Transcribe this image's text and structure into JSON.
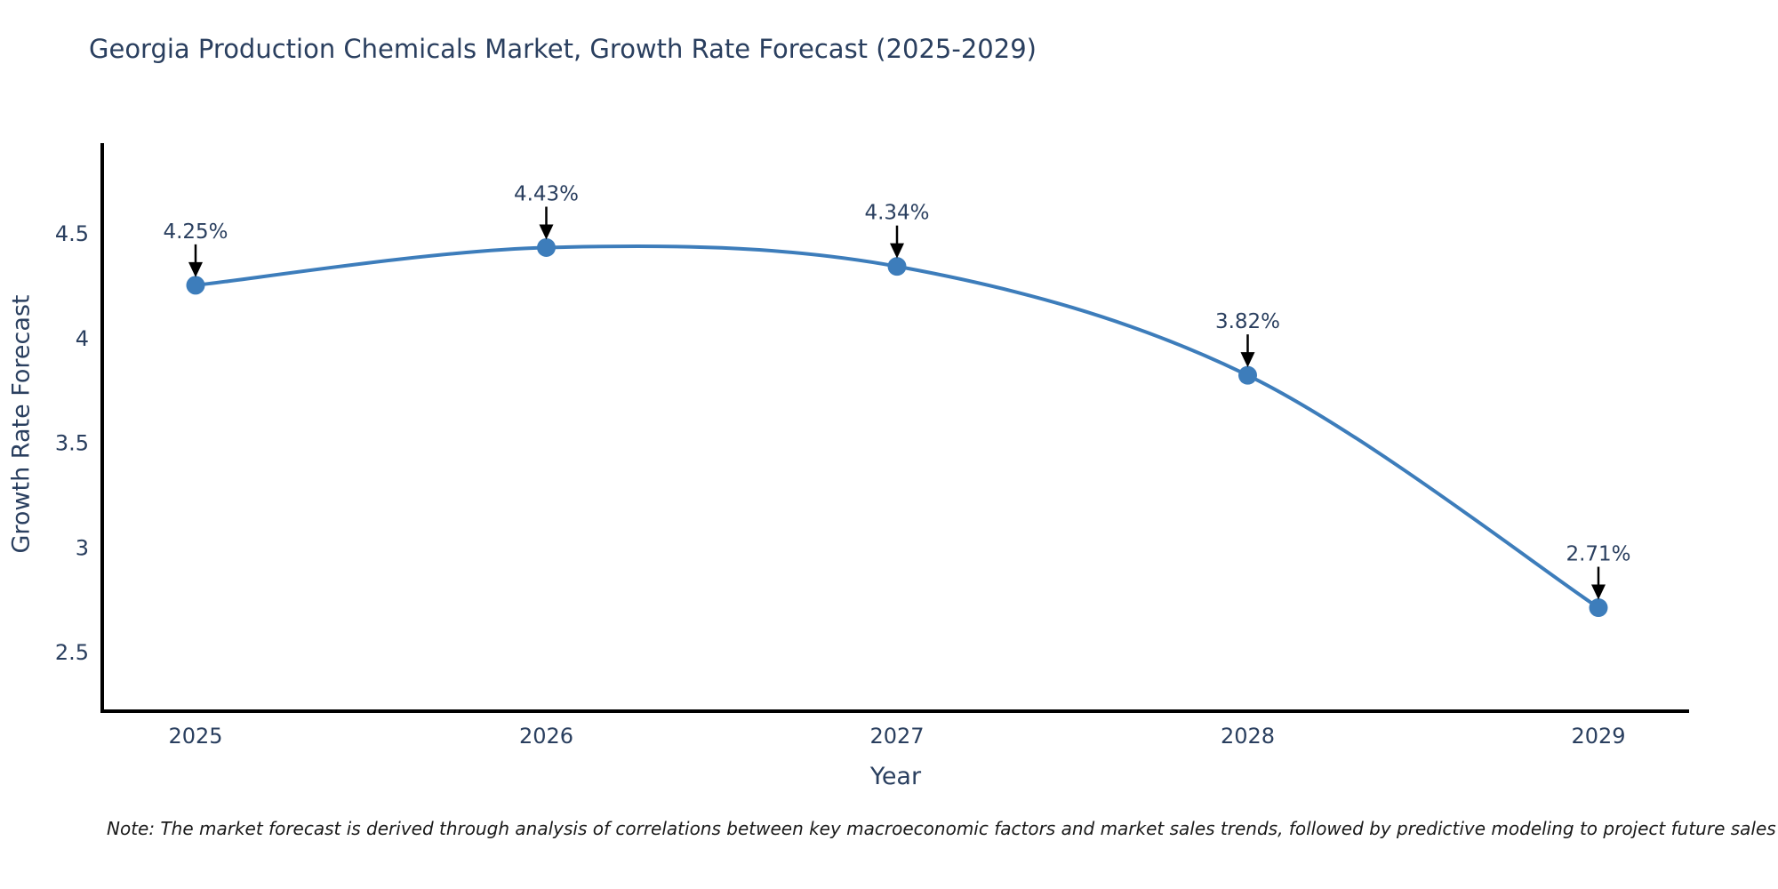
{
  "chart": {
    "note": "Note: The market forecast is derived through analysis of correlations between key macroeconomic factors and market sales trends, followed by predictive modeling to project future sales",
    "colors": {
      "line": "#3d7dbb",
      "marker": "#3d7dbb",
      "axis": "#000000",
      "text": "#2a3f5f",
      "arrow": "#000000",
      "note": "#1a1a1a",
      "background": "#ffffff"
    }
  },
  "chart_data": {
    "type": "line",
    "title": "Georgia Production Chemicals Market, Growth Rate Forecast (2025-2029)",
    "xlabel": "Year",
    "ylabel": "Growth Rate Forecast",
    "x": [
      2025,
      2026,
      2027,
      2028,
      2029
    ],
    "series": [
      {
        "name": "Growth Rate Forecast",
        "values": [
          4.25,
          4.43,
          4.34,
          3.82,
          2.71
        ],
        "labels": [
          "4.25%",
          "4.43%",
          "4.34%",
          "3.82%",
          "2.71%"
        ]
      }
    ],
    "x_tick_labels": [
      "2025",
      "2026",
      "2027",
      "2028",
      "2029"
    ],
    "y_ticks": [
      2.5,
      3,
      3.5,
      4,
      4.5
    ],
    "ylim": [
      2.22,
      4.93
    ],
    "grid": false,
    "legend": "none",
    "line_shape": "spline",
    "annotation_style": "value labels with black down-arrows above each data point"
  }
}
